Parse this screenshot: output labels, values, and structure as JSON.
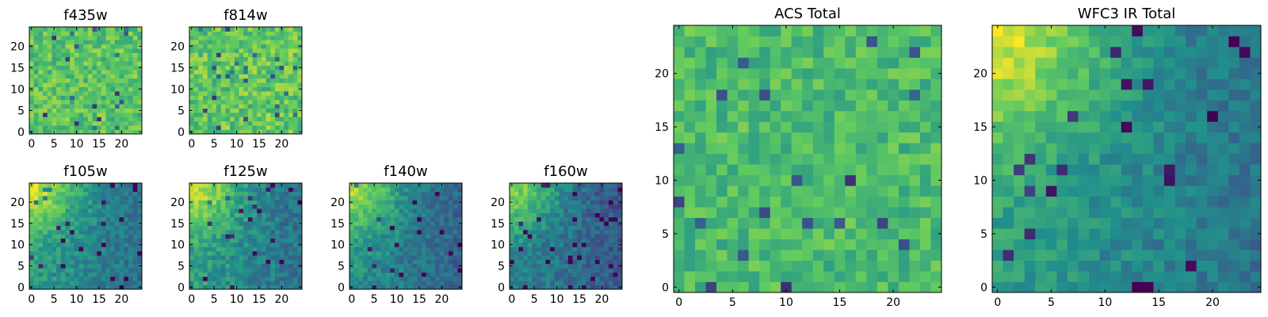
{
  "figure": {
    "title": "",
    "colormap": "viridis",
    "colormap_stops": [
      "#440154",
      "#3b528b",
      "#21918c",
      "#5ec962",
      "#fde725"
    ]
  },
  "chart_data": [
    {
      "type": "heatmap",
      "id": "f435w",
      "title": "f435w",
      "grid": [
        25,
        25
      ],
      "x_ticks": [
        "0",
        "5",
        "10",
        "15",
        "20"
      ],
      "y_ticks": [
        "0",
        "5",
        "10",
        "15",
        "20"
      ],
      "value_range": [
        0,
        1
      ],
      "structure": "noise",
      "mean_level": 0.72,
      "noise": 0.14,
      "seed": 11
    },
    {
      "type": "heatmap",
      "id": "f814w",
      "title": "f814w",
      "grid": [
        25,
        25
      ],
      "x_ticks": [
        "0",
        "5",
        "10",
        "15",
        "20"
      ],
      "y_ticks": [
        "0",
        "5",
        "10",
        "15",
        "20"
      ],
      "value_range": [
        0,
        1
      ],
      "structure": "noise",
      "mean_level": 0.74,
      "noise": 0.15,
      "seed": 23
    },
    {
      "type": "heatmap",
      "id": "f105w",
      "title": "f105w",
      "grid": [
        25,
        25
      ],
      "x_ticks": [
        "0",
        "5",
        "10",
        "15",
        "20"
      ],
      "y_ticks": [
        "0",
        "5",
        "10",
        "15",
        "20"
      ],
      "value_range": [
        0,
        1
      ],
      "structure": "bright_top_left",
      "mean_level": 0.55,
      "noise": 0.1,
      "seed": 37
    },
    {
      "type": "heatmap",
      "id": "f125w",
      "title": "f125w",
      "grid": [
        25,
        25
      ],
      "x_ticks": [
        "0",
        "5",
        "10",
        "15",
        "20"
      ],
      "y_ticks": [
        "0",
        "5",
        "10",
        "15",
        "20"
      ],
      "value_range": [
        0,
        1
      ],
      "structure": "bright_top_left",
      "mean_level": 0.55,
      "noise": 0.11,
      "seed": 41
    },
    {
      "type": "heatmap",
      "id": "f140w",
      "title": "f140w",
      "grid": [
        25,
        25
      ],
      "x_ticks": [
        "0",
        "5",
        "10",
        "15",
        "20"
      ],
      "y_ticks": [
        "0",
        "5",
        "10",
        "15",
        "20"
      ],
      "value_range": [
        0,
        1
      ],
      "structure": "bright_top_left",
      "mean_level": 0.5,
      "noise": 0.1,
      "seed": 53
    },
    {
      "type": "heatmap",
      "id": "f160w",
      "title": "f160w",
      "grid": [
        25,
        25
      ],
      "x_ticks": [
        "0",
        "5",
        "10",
        "15",
        "20"
      ],
      "y_ticks": [
        "0",
        "5",
        "10",
        "15",
        "20"
      ],
      "value_range": [
        0,
        1
      ],
      "structure": "bright_top_left",
      "mean_level": 0.45,
      "noise": 0.1,
      "seed": 67
    },
    {
      "type": "heatmap",
      "id": "acs_total",
      "title": "ACS Total",
      "grid": [
        25,
        25
      ],
      "x_ticks": [
        "0",
        "5",
        "10",
        "15",
        "20"
      ],
      "y_ticks": [
        "0",
        "5",
        "10",
        "15",
        "20"
      ],
      "value_range": [
        0,
        1
      ],
      "structure": "noise",
      "mean_level": 0.68,
      "noise": 0.12,
      "seed": 79
    },
    {
      "type": "heatmap",
      "id": "wfc3_ir_total",
      "title": "WFC3 IR Total",
      "grid": [
        25,
        25
      ],
      "x_ticks": [
        "0",
        "5",
        "10",
        "15",
        "20"
      ],
      "y_ticks": [
        "0",
        "5",
        "10",
        "15",
        "20"
      ],
      "value_range": [
        0,
        1
      ],
      "structure": "bright_top_left",
      "mean_level": 0.56,
      "noise": 0.09,
      "seed": 97
    }
  ]
}
